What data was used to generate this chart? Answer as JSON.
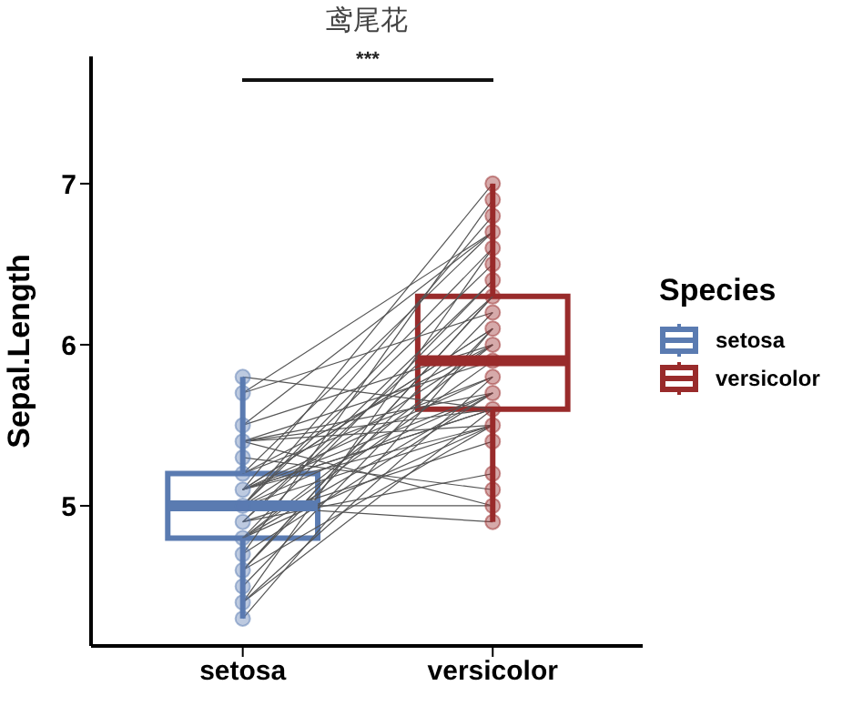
{
  "chart_data": {
    "type": "box",
    "title": "鸢尾花",
    "ylabel": "Sepal.Length",
    "legend_title": "Species",
    "legend": "right",
    "categories": [
      "setosa",
      "versicolor"
    ],
    "ylim": [
      4.13,
      7.79
    ],
    "yticks": [
      5,
      6,
      7
    ],
    "annotations": [
      "***"
    ],
    "series": [
      {
        "name": "setosa",
        "color": "#5a7bb1",
        "x": [
          "setosa"
        ],
        "boxes": [
          {
            "low": 4.3,
            "q1": 4.8,
            "median": 5.0,
            "q3": 5.2,
            "high": 5.8
          }
        ]
      },
      {
        "name": "versicolor",
        "color": "#992b2b",
        "x": [
          "versicolor"
        ],
        "boxes": [
          {
            "low": 4.9,
            "q1": 5.6,
            "median": 5.9,
            "q3": 6.3,
            "high": 7.0
          }
        ]
      },
      {
        "type": "scatter",
        "color": "#5a7bb1",
        "x": [
          "setosa",
          "setosa",
          "setosa",
          "setosa",
          "setosa",
          "setosa",
          "setosa",
          "setosa",
          "setosa",
          "setosa",
          "setosa",
          "setosa",
          "setosa",
          "setosa",
          "setosa"
        ],
        "values": [
          5.1,
          4.9,
          4.7,
          4.6,
          5.0,
          5.4,
          4.4,
          4.8,
          4.3,
          5.8,
          5.7,
          5.2,
          5.5,
          4.5,
          5.3
        ]
      },
      {
        "type": "scatter",
        "color": "#992b2b",
        "x": [
          "versicolor",
          "versicolor",
          "versicolor",
          "versicolor",
          "versicolor",
          "versicolor",
          "versicolor",
          "versicolor",
          "versicolor",
          "versicolor",
          "versicolor",
          "versicolor",
          "versicolor",
          "versicolor",
          "versicolor",
          "versicolor",
          "versicolor",
          "versicolor",
          "versicolor",
          "versicolor",
          "versicolor"
        ],
        "values": [
          7.0,
          6.4,
          6.9,
          5.5,
          6.5,
          5.7,
          6.3,
          4.9,
          6.6,
          5.2,
          5.0,
          5.9,
          6.0,
          6.1,
          5.6,
          6.7,
          5.8,
          6.2,
          6.8,
          5.4,
          5.1
        ]
      },
      {
        "type": "line",
        "color": "#555555",
        "x": [
          "setosa",
          "versicolor"
        ],
        "values": [
          5.1,
          7.0
        ]
      },
      {
        "type": "line",
        "color": "#555555",
        "x": [
          "setosa",
          "versicolor"
        ],
        "values": [
          4.9,
          6.4
        ]
      },
      {
        "type": "line",
        "color": "#555555",
        "x": [
          "setosa",
          "versicolor"
        ],
        "values": [
          4.7,
          6.9
        ]
      },
      {
        "type": "line",
        "color": "#555555",
        "x": [
          "setosa",
          "versicolor"
        ],
        "values": [
          4.6,
          5.5
        ]
      },
      {
        "type": "line",
        "color": "#555555",
        "x": [
          "setosa",
          "versicolor"
        ],
        "values": [
          5.0,
          6.5
        ]
      },
      {
        "type": "line",
        "color": "#555555",
        "x": [
          "setosa",
          "versicolor"
        ],
        "values": [
          5.4,
          5.7
        ]
      },
      {
        "type": "line",
        "color": "#555555",
        "x": [
          "setosa",
          "versicolor"
        ],
        "values": [
          4.6,
          6.3
        ]
      },
      {
        "type": "line",
        "color": "#555555",
        "x": [
          "setosa",
          "versicolor"
        ],
        "values": [
          5.0,
          4.9
        ]
      },
      {
        "type": "line",
        "color": "#555555",
        "x": [
          "setosa",
          "versicolor"
        ],
        "values": [
          4.4,
          6.6
        ]
      },
      {
        "type": "line",
        "color": "#555555",
        "x": [
          "setosa",
          "versicolor"
        ],
        "values": [
          4.9,
          5.2
        ]
      },
      {
        "type": "line",
        "color": "#555555",
        "x": [
          "setosa",
          "versicolor"
        ],
        "values": [
          5.4,
          5.0
        ]
      },
      {
        "type": "line",
        "color": "#555555",
        "x": [
          "setosa",
          "versicolor"
        ],
        "values": [
          4.8,
          5.9
        ]
      },
      {
        "type": "line",
        "color": "#555555",
        "x": [
          "setosa",
          "versicolor"
        ],
        "values": [
          4.8,
          6.0
        ]
      },
      {
        "type": "line",
        "color": "#555555",
        "x": [
          "setosa",
          "versicolor"
        ],
        "values": [
          4.3,
          6.1
        ]
      },
      {
        "type": "line",
        "color": "#555555",
        "x": [
          "setosa",
          "versicolor"
        ],
        "values": [
          5.8,
          5.6
        ]
      },
      {
        "type": "line",
        "color": "#555555",
        "x": [
          "setosa",
          "versicolor"
        ],
        "values": [
          5.7,
          6.7
        ]
      },
      {
        "type": "line",
        "color": "#555555",
        "x": [
          "setosa",
          "versicolor"
        ],
        "values": [
          5.4,
          5.6
        ]
      },
      {
        "type": "line",
        "color": "#555555",
        "x": [
          "setosa",
          "versicolor"
        ],
        "values": [
          5.1,
          5.8
        ]
      },
      {
        "type": "line",
        "color": "#555555",
        "x": [
          "setosa",
          "versicolor"
        ],
        "values": [
          5.7,
          6.2
        ]
      },
      {
        "type": "line",
        "color": "#555555",
        "x": [
          "setosa",
          "versicolor"
        ],
        "values": [
          5.1,
          5.6
        ]
      },
      {
        "type": "line",
        "color": "#555555",
        "x": [
          "setosa",
          "versicolor"
        ],
        "values": [
          5.4,
          5.9
        ]
      },
      {
        "type": "line",
        "color": "#555555",
        "x": [
          "setosa",
          "versicolor"
        ],
        "values": [
          5.1,
          6.1
        ]
      },
      {
        "type": "line",
        "color": "#555555",
        "x": [
          "setosa",
          "versicolor"
        ],
        "values": [
          4.6,
          6.3
        ]
      },
      {
        "type": "line",
        "color": "#555555",
        "x": [
          "setosa",
          "versicolor"
        ],
        "values": [
          5.1,
          6.1
        ]
      },
      {
        "type": "line",
        "color": "#555555",
        "x": [
          "setosa",
          "versicolor"
        ],
        "values": [
          4.8,
          6.4
        ]
      },
      {
        "type": "line",
        "color": "#555555",
        "x": [
          "setosa",
          "versicolor"
        ],
        "values": [
          5.0,
          6.6
        ]
      },
      {
        "type": "line",
        "color": "#555555",
        "x": [
          "setosa",
          "versicolor"
        ],
        "values": [
          5.0,
          6.8
        ]
      },
      {
        "type": "line",
        "color": "#555555",
        "x": [
          "setosa",
          "versicolor"
        ],
        "values": [
          5.2,
          6.7
        ]
      },
      {
        "type": "line",
        "color": "#555555",
        "x": [
          "setosa",
          "versicolor"
        ],
        "values": [
          5.2,
          6.0
        ]
      },
      {
        "type": "line",
        "color": "#555555",
        "x": [
          "setosa",
          "versicolor"
        ],
        "values": [
          4.7,
          5.7
        ]
      },
      {
        "type": "line",
        "color": "#555555",
        "x": [
          "setosa",
          "versicolor"
        ],
        "values": [
          4.8,
          5.5
        ]
      },
      {
        "type": "line",
        "color": "#555555",
        "x": [
          "setosa",
          "versicolor"
        ],
        "values": [
          5.4,
          5.5
        ]
      },
      {
        "type": "line",
        "color": "#555555",
        "x": [
          "setosa",
          "versicolor"
        ],
        "values": [
          5.2,
          5.8
        ]
      },
      {
        "type": "line",
        "color": "#555555",
        "x": [
          "setosa",
          "versicolor"
        ],
        "values": [
          5.5,
          6.0
        ]
      },
      {
        "type": "line",
        "color": "#555555",
        "x": [
          "setosa",
          "versicolor"
        ],
        "values": [
          4.9,
          5.4
        ]
      },
      {
        "type": "line",
        "color": "#555555",
        "x": [
          "setosa",
          "versicolor"
        ],
        "values": [
          5.0,
          6.0
        ]
      },
      {
        "type": "line",
        "color": "#555555",
        "x": [
          "setosa",
          "versicolor"
        ],
        "values": [
          5.5,
          6.7
        ]
      },
      {
        "type": "line",
        "color": "#555555",
        "x": [
          "setosa",
          "versicolor"
        ],
        "values": [
          4.9,
          6.3
        ]
      },
      {
        "type": "line",
        "color": "#555555",
        "x": [
          "setosa",
          "versicolor"
        ],
        "values": [
          4.4,
          5.6
        ]
      },
      {
        "type": "line",
        "color": "#555555",
        "x": [
          "setosa",
          "versicolor"
        ],
        "values": [
          5.1,
          5.5
        ]
      },
      {
        "type": "line",
        "color": "#555555",
        "x": [
          "setosa",
          "versicolor"
        ],
        "values": [
          5.0,
          5.5
        ]
      },
      {
        "type": "line",
        "color": "#555555",
        "x": [
          "setosa",
          "versicolor"
        ],
        "values": [
          4.5,
          6.1
        ]
      },
      {
        "type": "line",
        "color": "#555555",
        "x": [
          "setosa",
          "versicolor"
        ],
        "values": [
          4.4,
          5.8
        ]
      },
      {
        "type": "line",
        "color": "#555555",
        "x": [
          "setosa",
          "versicolor"
        ],
        "values": [
          5.0,
          5.0
        ]
      },
      {
        "type": "line",
        "color": "#555555",
        "x": [
          "setosa",
          "versicolor"
        ],
        "values": [
          5.1,
          5.6
        ]
      },
      {
        "type": "line",
        "color": "#555555",
        "x": [
          "setosa",
          "versicolor"
        ],
        "values": [
          4.8,
          5.7
        ]
      },
      {
        "type": "line",
        "color": "#555555",
        "x": [
          "setosa",
          "versicolor"
        ],
        "values": [
          5.1,
          5.7
        ]
      },
      {
        "type": "line",
        "color": "#555555",
        "x": [
          "setosa",
          "versicolor"
        ],
        "values": [
          4.6,
          6.2
        ]
      },
      {
        "type": "line",
        "color": "#555555",
        "x": [
          "setosa",
          "versicolor"
        ],
        "values": [
          5.3,
          5.1
        ]
      },
      {
        "type": "line",
        "color": "#555555",
        "x": [
          "setosa",
          "versicolor"
        ],
        "values": [
          5.0,
          5.7
        ]
      }
    ]
  }
}
